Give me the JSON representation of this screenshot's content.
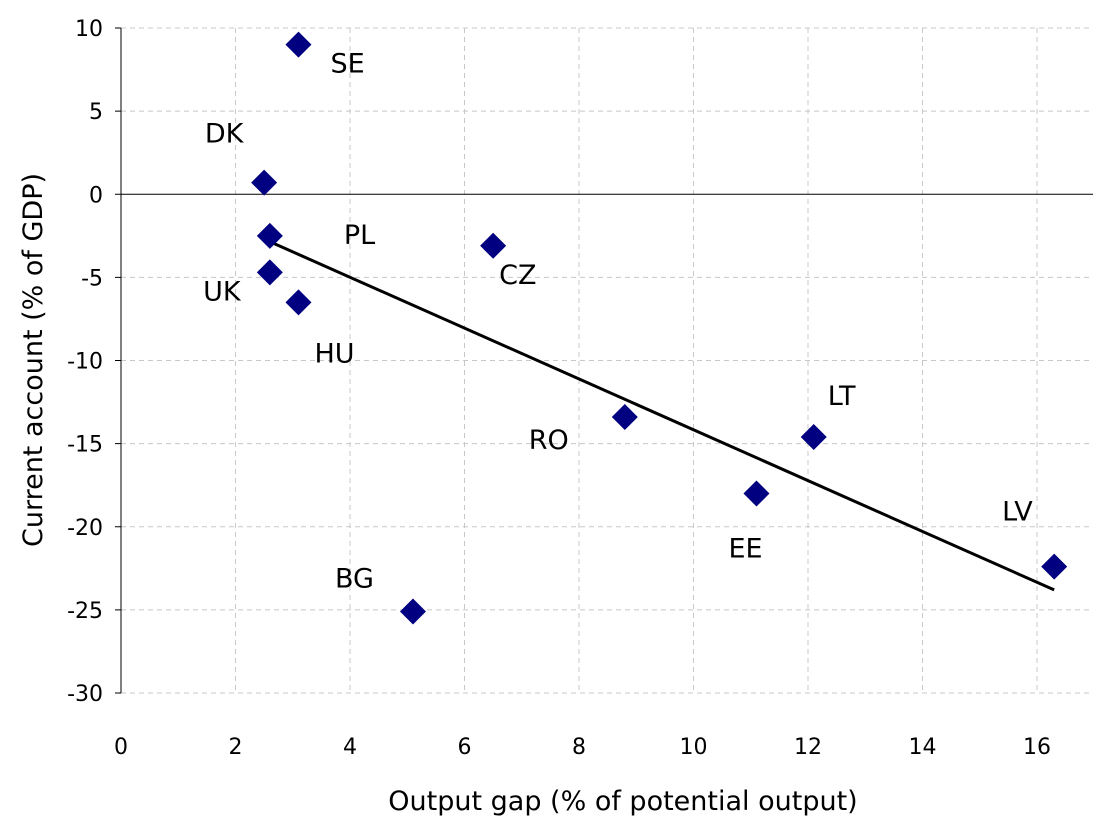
{
  "chart_data": {
    "type": "scatter",
    "xlabel": "Output gap (% of potential output)",
    "ylabel": "Current account (% of GDP)",
    "xlim": [
      0,
      18
    ],
    "ylim": [
      -30,
      10
    ],
    "xticks": [
      0,
      2,
      4,
      6,
      8,
      10,
      12,
      14,
      16
    ],
    "yticks": [
      10,
      5,
      0,
      -5,
      -10,
      -15,
      -20,
      -25,
      -30
    ],
    "grid": true,
    "marker": "diamond",
    "marker_color": "#000080",
    "trendline_color": "#000000",
    "points": [
      {
        "label": "SE",
        "x": 3.1,
        "y": 9.0
      },
      {
        "label": "DK",
        "x": 2.5,
        "y": 0.7
      },
      {
        "label": "PL",
        "x": 2.6,
        "y": -2.5
      },
      {
        "label": "UK",
        "x": 2.6,
        "y": -4.7
      },
      {
        "label": "HU",
        "x": 3.1,
        "y": -6.5
      },
      {
        "label": "CZ",
        "x": 6.5,
        "y": -3.1
      },
      {
        "label": "RO",
        "x": 8.8,
        "y": -13.4
      },
      {
        "label": "LT",
        "x": 12.1,
        "y": -14.6
      },
      {
        "label": "EE",
        "x": 11.1,
        "y": -18.0
      },
      {
        "label": "LV",
        "x": 16.3,
        "y": -22.4
      },
      {
        "label": "BG",
        "x": 5.1,
        "y": -25.1
      }
    ],
    "trendline": {
      "x": [
        2.5,
        16.3
      ],
      "y": [
        -2.7,
        -23.8
      ]
    }
  }
}
